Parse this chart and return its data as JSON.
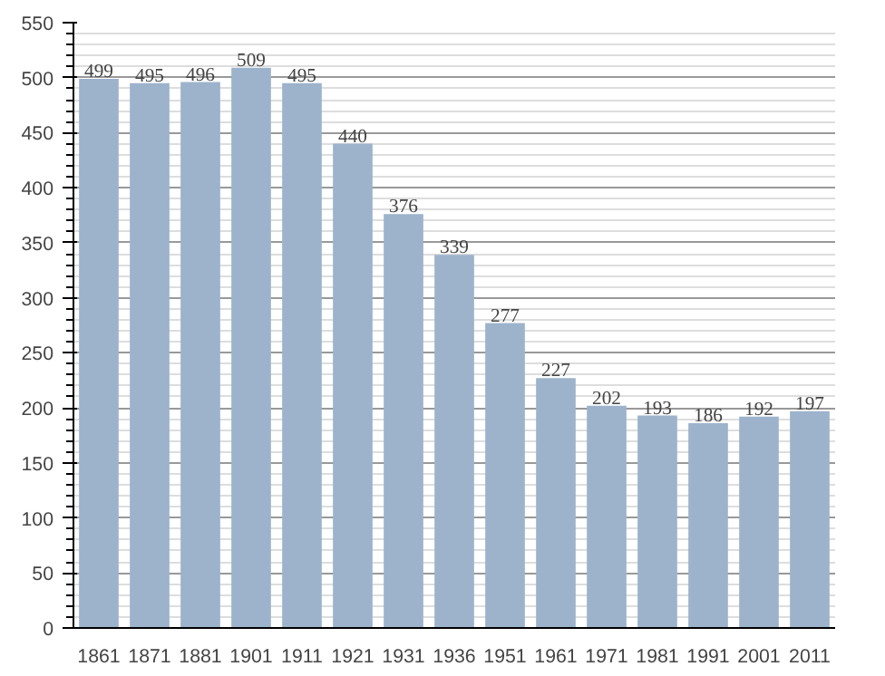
{
  "chart_data": {
    "type": "bar",
    "categories": [
      "1861",
      "1871",
      "1881",
      "1901",
      "1911",
      "1921",
      "1931",
      "1936",
      "1951",
      "1961",
      "1971",
      "1981",
      "1991",
      "2001",
      "2011"
    ],
    "values": [
      499,
      495,
      496,
      509,
      495,
      440,
      376,
      339,
      277,
      227,
      202,
      193,
      186,
      192,
      197
    ],
    "color": "#9db3cc",
    "ylim": [
      0,
      550
    ],
    "yticks": [
      0,
      50,
      100,
      150,
      200,
      250,
      300,
      350,
      400,
      450,
      500,
      550
    ],
    "grid": "y",
    "data_labels": true
  }
}
